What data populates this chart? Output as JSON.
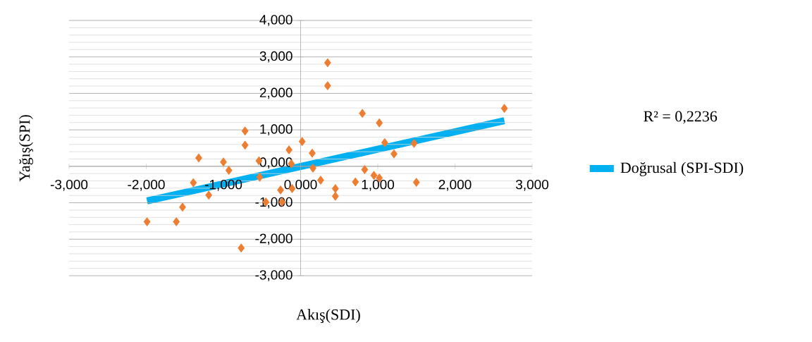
{
  "chart_data": {
    "type": "scatter",
    "xlabel": "Akış(SDI)",
    "ylabel": "Yağış(SPI)",
    "annotations": [
      "R² = 0,2236"
    ],
    "xlim": [
      -3,
      3
    ],
    "ylim": [
      -3,
      4
    ],
    "xticks": [
      {
        "value": -3,
        "label": "-3,000"
      },
      {
        "value": -2,
        "label": "-2,000"
      },
      {
        "value": -1,
        "label": "-1,000"
      },
      {
        "value": 0,
        "label": "0,000"
      },
      {
        "value": 1,
        "label": "1,000"
      },
      {
        "value": 2,
        "label": "2,000"
      },
      {
        "value": 3,
        "label": "3,000"
      }
    ],
    "yticks": [
      {
        "value": -3,
        "label": "-3,000"
      },
      {
        "value": -2,
        "label": "-2,000"
      },
      {
        "value": -1,
        "label": "-1,000"
      },
      {
        "value": 0,
        "label": "0,000"
      },
      {
        "value": 1,
        "label": "1,000"
      },
      {
        "value": 2,
        "label": "2,000"
      },
      {
        "value": 3,
        "label": "3,000"
      },
      {
        "value": 4,
        "label": "4,000"
      }
    ],
    "grid": "y",
    "legend": "right",
    "series": [
      {
        "marker": "diamond",
        "color": "#ed7d31",
        "x": [
          -1.99,
          -1.61,
          -1.53,
          -1.39,
          -1.32,
          -1.19,
          -1.0,
          -0.93,
          -0.72,
          -0.72,
          -0.77,
          -0.54,
          -0.53,
          -0.45,
          -0.24,
          -0.26,
          -0.15,
          -0.12,
          -0.11,
          0.02,
          0.15,
          0.16,
          0.26,
          0.35,
          0.35,
          0.45,
          0.45,
          0.71,
          0.8,
          0.83,
          0.95,
          1.02,
          1.02,
          1.09,
          1.21,
          1.47,
          1.5,
          2.64
        ],
        "values": [
          -1.52,
          -1.52,
          -1.12,
          -0.45,
          0.23,
          -0.79,
          0.12,
          -0.11,
          0.97,
          0.58,
          -2.24,
          0.15,
          -0.3,
          -0.98,
          -0.98,
          -0.65,
          0.45,
          0.07,
          -0.61,
          0.68,
          0.36,
          -0.05,
          -0.38,
          2.84,
          2.21,
          -0.61,
          -0.82,
          -0.43,
          1.45,
          -0.09,
          -0.25,
          -0.32,
          1.19,
          0.65,
          0.34,
          0.63,
          -0.44,
          1.59
        ]
      },
      {
        "type": "line",
        "marker": "none",
        "name": "Doğrusal (SPI-SDI)",
        "color": "#00b0f0",
        "x": [
          -1.99,
          2.64
        ],
        "values": [
          -0.95,
          1.25
        ]
      }
    ]
  }
}
